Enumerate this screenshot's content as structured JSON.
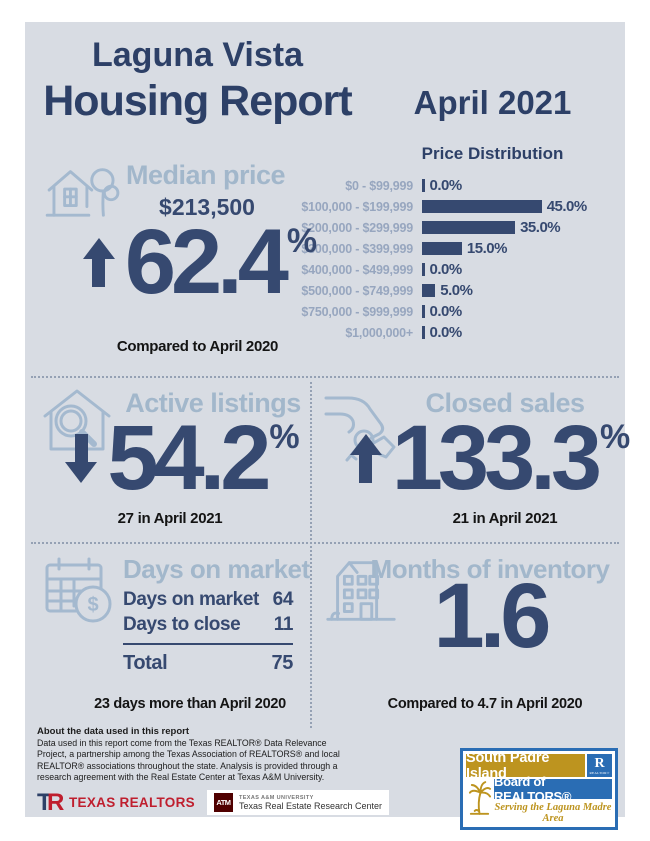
{
  "header": {
    "title_line1": "Laguna Vista",
    "title_line2": "Housing Report",
    "period": "April 2021"
  },
  "chart_data": {
    "type": "bar",
    "orientation": "horizontal",
    "title": "Price Distribution",
    "categories": [
      "$0 - $99,999",
      "$100,000 - $199,999",
      "$200,000 - $299,999",
      "$300,000 - $399,999",
      "$400,000 - $499,999",
      "$500,000 - $749,999",
      "$750,000 - $999,999",
      "$1,000,000+"
    ],
    "values": [
      0,
      45,
      35,
      15,
      0,
      5,
      0,
      0
    ],
    "value_labels": [
      "0.0%",
      "45.0%",
      "35.0%",
      "15.0%",
      "0.0%",
      "5.0%",
      "0.0%",
      "0.0%"
    ],
    "xlim": [
      0,
      50
    ],
    "grid": false,
    "legend": false
  },
  "median_price": {
    "label": "Median price",
    "value": "$213,500",
    "change": "62.4",
    "unit": "%",
    "direction": "up",
    "note": "Compared to April 2020"
  },
  "active_listings": {
    "label": "Active listings",
    "change": "54.2",
    "unit": "%",
    "direction": "down",
    "note": "27 in April 2021"
  },
  "closed_sales": {
    "label": "Closed sales",
    "change": "133.3",
    "unit": "%",
    "direction": "up",
    "note": "21 in April 2021"
  },
  "days_on_market": {
    "label": "Days on market",
    "rows": [
      {
        "label": "Days on market",
        "value": "64"
      },
      {
        "label": "Days to close",
        "value": "11"
      }
    ],
    "total_label": "Total",
    "total_value": "75",
    "note": "23 days more than April 2020"
  },
  "months_of_inventory": {
    "label": "Months of inventory",
    "value": "1.6",
    "note": "Compared to 4.7 in April 2020"
  },
  "footer": {
    "about_title": "About the data used in this report",
    "about_text": "Data used in this report come from the Texas REALTOR® Data Relevance Project, a partnership among the Texas Association of REALTORS® and local REALTOR® associations throughout the state. Analysis is provided through a research agreement with the Real Estate Center at Texas A&M University.",
    "tr_logo": {
      "t": "T",
      "r": "R",
      "text": "TEXAS REALTORS"
    },
    "tamu": {
      "mark": "ATM",
      "line1": "TEXAS A&M UNIVERSITY",
      "line2": "Texas Real Estate Research Center"
    },
    "badge": {
      "line1": "South Padre Island",
      "r_mark": "R",
      "r_small": "REALTOR®",
      "line2": "Board of REALTORS®",
      "line3": "Serving the Laguna Madre Area"
    }
  },
  "icons": {
    "median": "house-with-tree-icon",
    "dollar_sign": "$",
    "active": "house-magnifier-icon",
    "closed": "hand-with-keys-icon",
    "days": "calendar-dollar-icon",
    "months": "apartment-building-icon"
  },
  "colors": {
    "navy": "#364970",
    "muted_blue": "#a2b7cb",
    "panel_bg": "#d8dce3",
    "red": "#bf1e2e",
    "maroon": "#500000",
    "badge_gold": "#bd941f",
    "badge_blue": "#2a6db4"
  }
}
